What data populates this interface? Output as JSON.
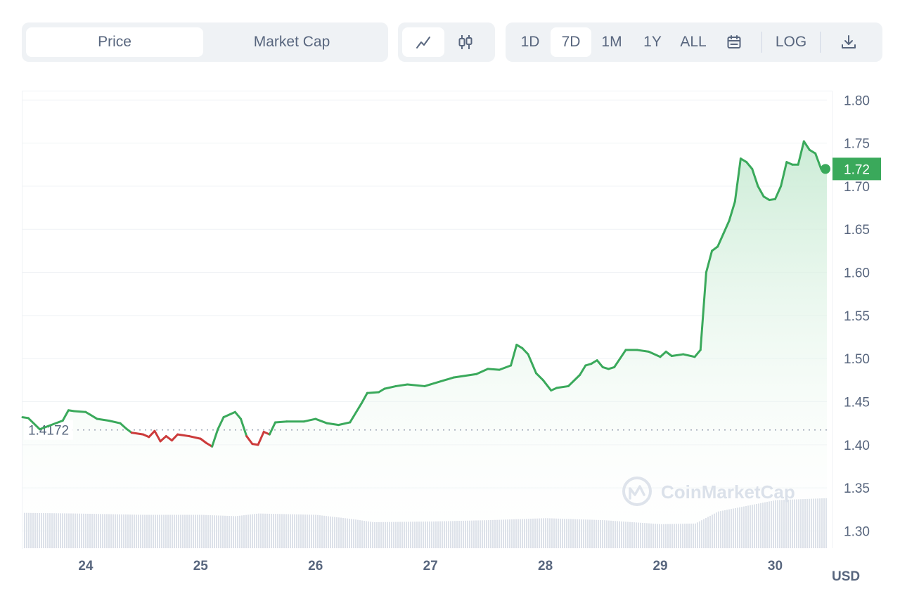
{
  "tabs": {
    "metric": [
      {
        "label": "Price",
        "active": true
      },
      {
        "label": "Market Cap",
        "active": false
      }
    ],
    "chart_types": [
      {
        "icon": "line-chart-icon",
        "active": true
      },
      {
        "icon": "candlestick-icon",
        "active": false
      }
    ],
    "ranges": [
      {
        "label": "1D",
        "active": false
      },
      {
        "label": "7D",
        "active": true
      },
      {
        "label": "1M",
        "active": false
      },
      {
        "label": "1Y",
        "active": false
      },
      {
        "label": "ALL",
        "active": false
      }
    ],
    "calendar_icon": "calendar-icon",
    "log_label": "LOG",
    "download_icon": "download-icon"
  },
  "watermark": "CoinMarketCap",
  "colors": {
    "up": "#3aa95b",
    "down": "#cc3b3b",
    "area_top": "#c9ebd4",
    "grid": "#eff2f5",
    "volume": "#d8dde6"
  },
  "chart_data": {
    "type": "area",
    "unit_label": "USD",
    "ylim": [
      1.28,
      1.81
    ],
    "yticks": [
      "1.80",
      "1.75",
      "1.70",
      "1.65",
      "1.60",
      "1.55",
      "1.50",
      "1.45",
      "1.40",
      "1.35",
      "1.30"
    ],
    "xticks": [
      {
        "label": "24",
        "x": 24
      },
      {
        "label": "25",
        "x": 25
      },
      {
        "label": "26",
        "x": 26
      },
      {
        "label": "27",
        "x": 27
      },
      {
        "label": "28",
        "x": 28
      },
      {
        "label": "29",
        "x": 29
      },
      {
        "label": "30",
        "x": 30
      }
    ],
    "xlim": [
      23.45,
      30.45
    ],
    "grid": true,
    "baseline": {
      "value": 1.4172,
      "label": "1.4172"
    },
    "current": {
      "value": 1.72,
      "label": "1.72"
    },
    "series": [
      {
        "points": [
          [
            23.45,
            1.432
          ],
          [
            23.5,
            1.431
          ],
          [
            23.6,
            1.418
          ],
          [
            23.8,
            1.428
          ],
          [
            23.85,
            1.44
          ],
          [
            23.9,
            1.439
          ],
          [
            24.0,
            1.438
          ],
          [
            24.1,
            1.43
          ],
          [
            24.2,
            1.428
          ],
          [
            24.3,
            1.425
          ],
          [
            24.35,
            1.419
          ],
          [
            24.4,
            1.414
          ],
          [
            24.5,
            1.412
          ],
          [
            24.55,
            1.409
          ],
          [
            24.6,
            1.416
          ],
          [
            24.65,
            1.404
          ],
          [
            24.7,
            1.41
          ],
          [
            24.75,
            1.405
          ],
          [
            24.8,
            1.412
          ],
          [
            24.9,
            1.41
          ],
          [
            25.0,
            1.407
          ],
          [
            25.05,
            1.402
          ],
          [
            25.1,
            1.398
          ],
          [
            25.15,
            1.418
          ],
          [
            25.2,
            1.432
          ],
          [
            25.3,
            1.438
          ],
          [
            25.35,
            1.43
          ],
          [
            25.4,
            1.41
          ],
          [
            25.45,
            1.401
          ],
          [
            25.5,
            1.4
          ],
          [
            25.55,
            1.415
          ],
          [
            25.6,
            1.412
          ],
          [
            25.65,
            1.426
          ],
          [
            25.75,
            1.427
          ],
          [
            25.9,
            1.427
          ],
          [
            26.0,
            1.43
          ],
          [
            26.1,
            1.425
          ],
          [
            26.2,
            1.423
          ],
          [
            26.3,
            1.426
          ],
          [
            26.4,
            1.448
          ],
          [
            26.45,
            1.46
          ],
          [
            26.55,
            1.461
          ],
          [
            26.6,
            1.465
          ],
          [
            26.7,
            1.468
          ],
          [
            26.8,
            1.47
          ],
          [
            26.95,
            1.468
          ],
          [
            27.0,
            1.47
          ],
          [
            27.2,
            1.478
          ],
          [
            27.4,
            1.482
          ],
          [
            27.5,
            1.488
          ],
          [
            27.6,
            1.487
          ],
          [
            27.7,
            1.492
          ],
          [
            27.75,
            1.516
          ],
          [
            27.8,
            1.512
          ],
          [
            27.85,
            1.505
          ],
          [
            27.92,
            1.483
          ],
          [
            27.98,
            1.475
          ],
          [
            28.05,
            1.463
          ],
          [
            28.1,
            1.466
          ],
          [
            28.2,
            1.468
          ],
          [
            28.3,
            1.481
          ],
          [
            28.35,
            1.492
          ],
          [
            28.4,
            1.494
          ],
          [
            28.45,
            1.498
          ],
          [
            28.5,
            1.49
          ],
          [
            28.55,
            1.488
          ],
          [
            28.6,
            1.49
          ],
          [
            28.7,
            1.51
          ],
          [
            28.8,
            1.51
          ],
          [
            28.9,
            1.508
          ],
          [
            29.0,
            1.502
          ],
          [
            29.05,
            1.508
          ],
          [
            29.1,
            1.503
          ],
          [
            29.2,
            1.505
          ],
          [
            29.3,
            1.502
          ],
          [
            29.35,
            1.51
          ],
          [
            29.4,
            1.6
          ],
          [
            29.45,
            1.625
          ],
          [
            29.5,
            1.63
          ],
          [
            29.55,
            1.645
          ],
          [
            29.6,
            1.66
          ],
          [
            29.65,
            1.682
          ],
          [
            29.7,
            1.732
          ],
          [
            29.75,
            1.728
          ],
          [
            29.8,
            1.72
          ],
          [
            29.85,
            1.7
          ],
          [
            29.9,
            1.688
          ],
          [
            29.95,
            1.684
          ],
          [
            30.0,
            1.685
          ],
          [
            30.05,
            1.7
          ],
          [
            30.1,
            1.728
          ],
          [
            30.15,
            1.725
          ],
          [
            30.2,
            1.725
          ],
          [
            30.25,
            1.752
          ],
          [
            30.3,
            1.742
          ],
          [
            30.35,
            1.738
          ],
          [
            30.4,
            1.72
          ],
          [
            30.45,
            1.72
          ]
        ]
      }
    ],
    "volume": [
      [
        23.45,
        0.53
      ],
      [
        23.9,
        0.52
      ],
      [
        24.5,
        0.5
      ],
      [
        25.0,
        0.5
      ],
      [
        25.3,
        0.48
      ],
      [
        25.5,
        0.52
      ],
      [
        26.0,
        0.5
      ],
      [
        26.3,
        0.44
      ],
      [
        26.5,
        0.39
      ],
      [
        27.0,
        0.4
      ],
      [
        27.5,
        0.42
      ],
      [
        28.0,
        0.45
      ],
      [
        28.5,
        0.42
      ],
      [
        29.0,
        0.36
      ],
      [
        29.3,
        0.37
      ],
      [
        29.5,
        0.55
      ],
      [
        30.0,
        0.72
      ],
      [
        30.45,
        0.75
      ]
    ]
  }
}
